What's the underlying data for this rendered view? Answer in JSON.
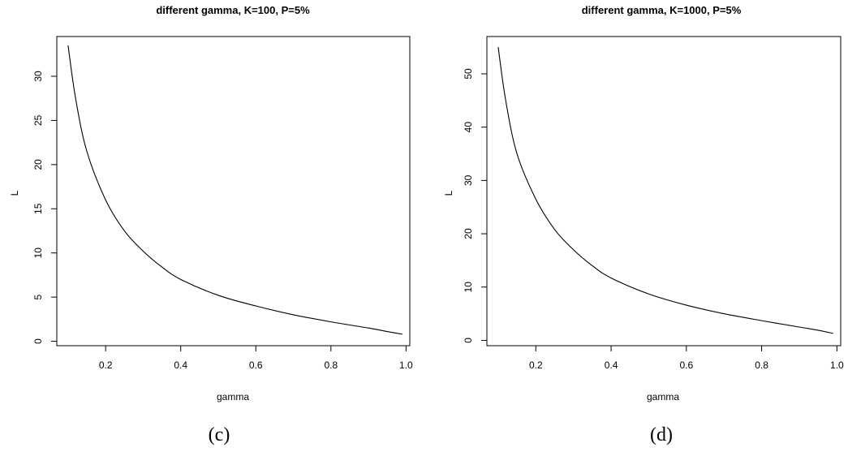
{
  "chart_data": [
    {
      "type": "line",
      "panel": "(c)",
      "title": "different gamma, K=100, P=5%",
      "xlabel": "gamma",
      "ylabel": "L",
      "xlim": [
        0.07,
        1.01
      ],
      "ylim": [
        -0.5,
        34.5
      ],
      "xticks": [
        0.2,
        0.4,
        0.6,
        0.8,
        1.0
      ],
      "xtick_labels": [
        "0.2",
        "0.4",
        "0.6",
        "0.8",
        "1.0"
      ],
      "yticks": [
        0,
        5,
        10,
        15,
        20,
        25,
        30
      ],
      "ytick_labels": [
        "0",
        "5",
        "10",
        "15",
        "20",
        "25",
        "30"
      ],
      "grid": false,
      "series": [
        {
          "x": [
            0.1,
            0.12,
            0.15,
            0.2,
            0.25,
            0.3,
            0.35,
            0.4,
            0.5,
            0.6,
            0.7,
            0.8,
            0.9,
            0.95,
            0.99
          ],
          "y": [
            33.5,
            27.5,
            21.5,
            16.0,
            12.5,
            10.2,
            8.4,
            7.0,
            5.2,
            4.0,
            3.0,
            2.2,
            1.5,
            1.1,
            0.8
          ]
        }
      ]
    },
    {
      "type": "line",
      "panel": "(d)",
      "title": "different gamma, K=1000, P=5%",
      "xlabel": "gamma",
      "ylabel": "L",
      "xlim": [
        0.07,
        1.01
      ],
      "ylim": [
        -1,
        57
      ],
      "xticks": [
        0.2,
        0.4,
        0.6,
        0.8,
        1.0
      ],
      "xtick_labels": [
        "0.2",
        "0.4",
        "0.6",
        "0.8",
        "1.0"
      ],
      "yticks": [
        0,
        10,
        20,
        30,
        40,
        50
      ],
      "ytick_labels": [
        "0",
        "10",
        "20",
        "30",
        "40",
        "50"
      ],
      "grid": false,
      "series": [
        {
          "x": [
            0.1,
            0.12,
            0.15,
            0.2,
            0.25,
            0.3,
            0.35,
            0.4,
            0.5,
            0.6,
            0.7,
            0.8,
            0.9,
            0.95,
            0.99
          ],
          "y": [
            55.0,
            45.0,
            35.0,
            26.5,
            20.8,
            17.0,
            14.0,
            11.7,
            8.7,
            6.6,
            5.0,
            3.7,
            2.5,
            1.9,
            1.3
          ]
        }
      ]
    }
  ]
}
